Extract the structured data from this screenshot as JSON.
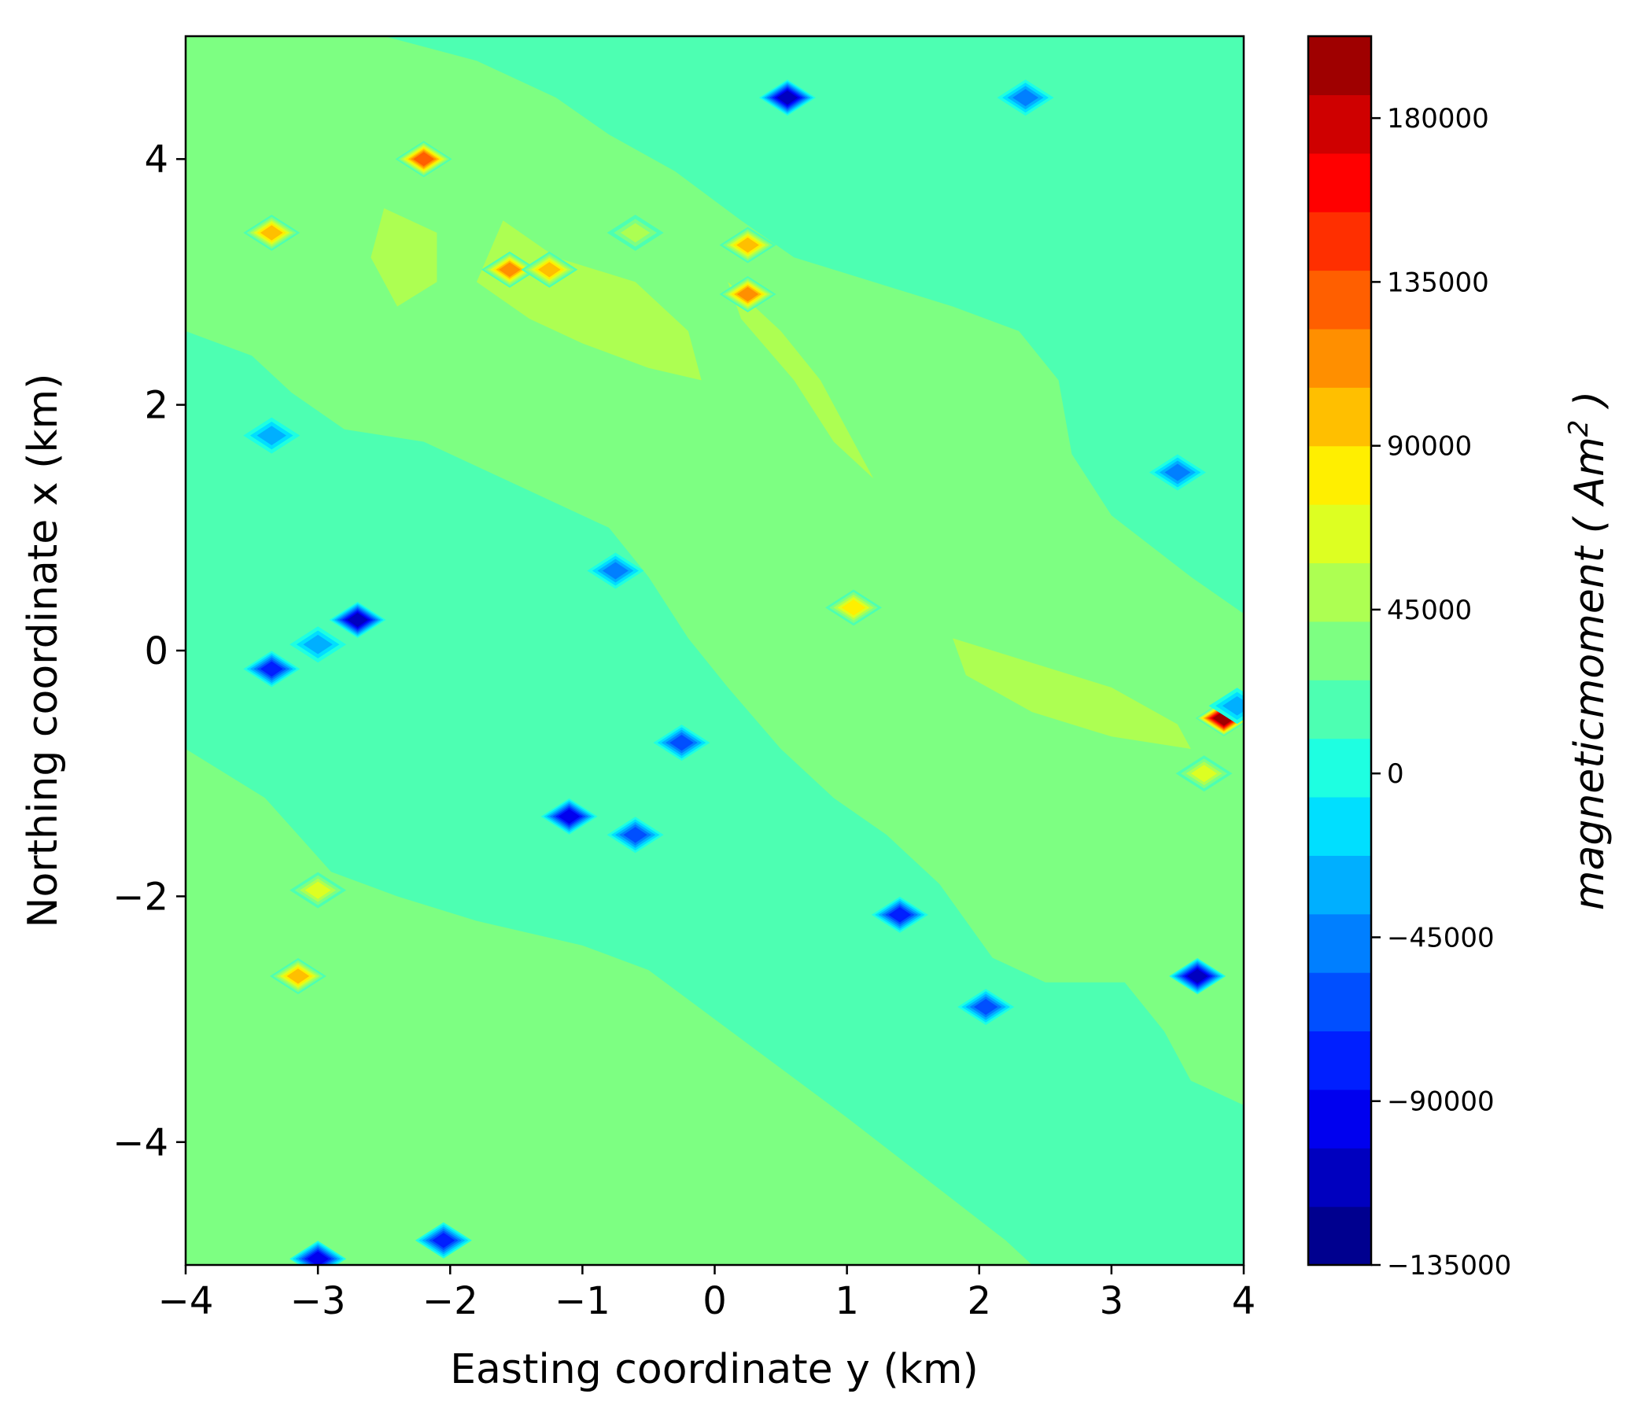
{
  "chart_data": {
    "type": "contour",
    "xlabel": "Easting coordinate y (km)",
    "ylabel": "Northing coordinate x (km)",
    "xlim": [
      -4,
      4
    ],
    "ylim": [
      -5,
      5
    ],
    "xticks": [
      -4,
      -3,
      -2,
      -1,
      0,
      1,
      2,
      3,
      4
    ],
    "xtick_labels": [
      "−4",
      "−3",
      "−2",
      "−1",
      "0",
      "1",
      "2",
      "3",
      "4"
    ],
    "yticks": [
      4,
      2,
      0,
      -2,
      -4
    ],
    "ytick_labels": [
      "4",
      "2",
      "0",
      "−2",
      "−4"
    ],
    "colorbar": {
      "label": "magneticmoment ( Am² )",
      "label_main": "magneticmoment ( Am",
      "label_sup": "2",
      "label_close": " )",
      "range": [
        -135000,
        202500
      ],
      "level_step": 15000,
      "ticks": [
        180000,
        135000,
        90000,
        45000,
        0,
        -45000,
        -90000,
        -135000
      ],
      "tick_labels": [
        "180000",
        "135000",
        "90000",
        "45000",
        "0",
        "−45000",
        "−90000",
        "−135000"
      ],
      "colors": [
        "#00008f",
        "#0000bf",
        "#0000ef",
        "#001fff",
        "#004fff",
        "#007fff",
        "#00afff",
        "#00dfff",
        "#1effe1",
        "#4dffb2",
        "#7dff82",
        "#adff52",
        "#ddff22",
        "#ffef00",
        "#ffbf00",
        "#ff8f00",
        "#ff5f00",
        "#ff2f00",
        "#ff0000",
        "#cf0000",
        "#9f0000"
      ]
    },
    "background_value": 0,
    "regions": [
      {
        "value": 15000,
        "outline": [
          [
            -4,
            2.6
          ],
          [
            -3.5,
            2.4
          ],
          [
            -3.2,
            2.1
          ],
          [
            -2.8,
            1.8
          ],
          [
            -2.2,
            1.7
          ],
          [
            -1.8,
            1.5
          ],
          [
            -1.2,
            1.2
          ],
          [
            -0.8,
            1.0
          ],
          [
            -0.5,
            0.6
          ],
          [
            -0.2,
            0.1
          ],
          [
            0.1,
            -0.3
          ],
          [
            0.5,
            -0.8
          ],
          [
            0.9,
            -1.2
          ],
          [
            1.3,
            -1.5
          ],
          [
            1.7,
            -1.9
          ],
          [
            2.1,
            -2.5
          ],
          [
            2.5,
            -2.7
          ],
          [
            3.1,
            -2.7
          ],
          [
            3.4,
            -3.1
          ],
          [
            3.6,
            -3.5
          ],
          [
            4,
            -3.7
          ],
          [
            4,
            0.3
          ],
          [
            3.6,
            0.6
          ],
          [
            3.0,
            1.1
          ],
          [
            2.7,
            1.6
          ],
          [
            2.6,
            2.2
          ],
          [
            2.3,
            2.6
          ],
          [
            1.8,
            2.8
          ],
          [
            1.2,
            3.0
          ],
          [
            0.6,
            3.2
          ],
          [
            0.2,
            3.5
          ],
          [
            -0.3,
            3.9
          ],
          [
            -0.8,
            4.2
          ],
          [
            -1.2,
            4.5
          ],
          [
            -1.8,
            4.8
          ],
          [
            -2.5,
            5.0
          ],
          [
            -4,
            5.0
          ]
        ]
      },
      {
        "value": 15000,
        "outline": [
          [
            -4,
            -0.8
          ],
          [
            -3.4,
            -1.2
          ],
          [
            -2.9,
            -1.8
          ],
          [
            -2.4,
            -2.0
          ],
          [
            -1.8,
            -2.2
          ],
          [
            -1.0,
            -2.4
          ],
          [
            -0.5,
            -2.6
          ],
          [
            0,
            -3.0
          ],
          [
            0.5,
            -3.4
          ],
          [
            1.0,
            -3.8
          ],
          [
            1.6,
            -4.3
          ],
          [
            2.2,
            -4.8
          ],
          [
            2.4,
            -5.0
          ],
          [
            -4,
            -5.0
          ]
        ]
      },
      {
        "value": 30000,
        "outline": [
          [
            -1.6,
            3.5
          ],
          [
            -1.2,
            3.2
          ],
          [
            -0.6,
            3.0
          ],
          [
            -0.2,
            2.6
          ],
          [
            -0.1,
            2.2
          ],
          [
            -0.5,
            2.3
          ],
          [
            -1.0,
            2.5
          ],
          [
            -1.4,
            2.7
          ],
          [
            -1.8,
            3.0
          ]
        ]
      },
      {
        "value": 30000,
        "outline": [
          [
            0.1,
            3.0
          ],
          [
            0.5,
            2.6
          ],
          [
            0.8,
            2.2
          ],
          [
            1.1,
            1.6
          ],
          [
            1.2,
            1.4
          ],
          [
            0.9,
            1.7
          ],
          [
            0.6,
            2.2
          ],
          [
            0.2,
            2.7
          ]
        ]
      },
      {
        "value": 30000,
        "outline": [
          [
            -2.5,
            3.6
          ],
          [
            -2.1,
            3.4
          ],
          [
            -2.1,
            3.0
          ],
          [
            -2.4,
            2.8
          ],
          [
            -2.6,
            3.2
          ]
        ]
      },
      {
        "value": 30000,
        "outline": [
          [
            1.8,
            0.1
          ],
          [
            2.4,
            -0.1
          ],
          [
            3.0,
            -0.3
          ],
          [
            3.5,
            -0.6
          ],
          [
            3.6,
            -0.8
          ],
          [
            3.0,
            -0.7
          ],
          [
            2.4,
            -0.5
          ],
          [
            1.9,
            -0.2
          ]
        ]
      }
    ],
    "anomalies": [
      {
        "y": -2.2,
        "x": 4.0,
        "value": 120000
      },
      {
        "y": -3.35,
        "x": 3.4,
        "value": 90000
      },
      {
        "y": -1.55,
        "x": 3.1,
        "value": 105000
      },
      {
        "y": -1.25,
        "x": 3.1,
        "value": 90000
      },
      {
        "y": 0.25,
        "x": 3.3,
        "value": 90000
      },
      {
        "y": 0.25,
        "x": 2.9,
        "value": 105000
      },
      {
        "y": -0.6,
        "x": 3.4,
        "value": 45000
      },
      {
        "y": 1.05,
        "x": 0.35,
        "value": 75000
      },
      {
        "y": 3.85,
        "x": -0.55,
        "value": 195000
      },
      {
        "y": 3.7,
        "x": -1.0,
        "value": 60000
      },
      {
        "y": -3.15,
        "x": -2.65,
        "value": 90000
      },
      {
        "y": -3.0,
        "x": -1.95,
        "value": 60000
      },
      {
        "y": 0.55,
        "x": 4.5,
        "value": -120000
      },
      {
        "y": 2.35,
        "x": 4.5,
        "value": -60000
      },
      {
        "y": -2.7,
        "x": 0.25,
        "value": -120000
      },
      {
        "y": -3.35,
        "x": -0.15,
        "value": -90000
      },
      {
        "y": -3.0,
        "x": 0.05,
        "value": -45000
      },
      {
        "y": -3.35,
        "x": 1.75,
        "value": -45000
      },
      {
        "y": -0.75,
        "x": 0.65,
        "value": -60000
      },
      {
        "y": -1.1,
        "x": -1.35,
        "value": -105000
      },
      {
        "y": -0.6,
        "x": -1.5,
        "value": -75000
      },
      {
        "y": -0.25,
        "x": -0.75,
        "value": -75000
      },
      {
        "y": 1.4,
        "x": -2.15,
        "value": -90000
      },
      {
        "y": 2.05,
        "x": -2.9,
        "value": -75000
      },
      {
        "y": 3.65,
        "x": -2.65,
        "value": -120000
      },
      {
        "y": -3.0,
        "x": -4.95,
        "value": -105000
      },
      {
        "y": -2.05,
        "x": -4.8,
        "value": -90000
      },
      {
        "y": 3.5,
        "x": 1.45,
        "value": -60000
      },
      {
        "y": 3.95,
        "x": -0.45,
        "value": -45000
      }
    ]
  }
}
